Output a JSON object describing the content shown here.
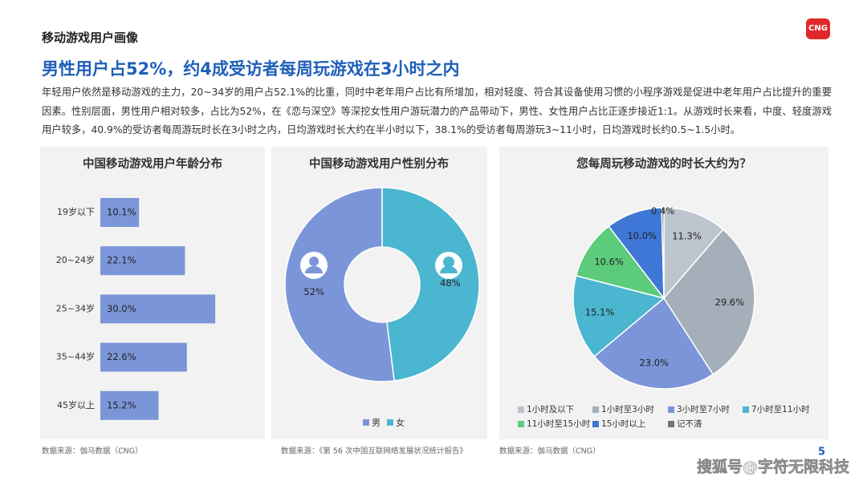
{
  "header": {
    "section": "移动游戏用户画像",
    "logo": "CNG",
    "title": "男性用户占52%，约4成受访者每周玩游戏在3小时之内",
    "paragraph": "年轻用户依然是移动游戏的主力，20~34岁的用户占52.1%的比重，同时中老年用户占比有所增加，相对轻度、符合其设备使用习惯的小程序游戏是促进中老年用户占比提升的重要因素。性别层面，男性用户相对较多，占比为52%，在《恋与深空》等深挖女性用户游玩潜力的产品带动下，男性、女性用户占比正逐步接近1:1。从游戏时长来看，中度、轻度游戏用户较多，40.9%的受访者每周游玩时长在3小时之内，日均游戏时长大约在半小时以下，38.1%的受访者每周游玩3~11小时，日均游戏时长约0.5~1.5小时。"
  },
  "chart_data": [
    {
      "type": "bar",
      "title": "中国移动游戏用户年龄分布",
      "source": "数据来源：伽马数据（CNG）",
      "categories": [
        "19岁以下",
        "20~24岁",
        "25~34岁",
        "35~44岁",
        "45岁以上"
      ],
      "values": [
        10.1,
        22.1,
        30.0,
        22.6,
        15.2
      ],
      "value_labels": [
        "10.1%",
        "22.1%",
        "30.0%",
        "22.6%",
        "15.2%"
      ],
      "color": "#7b96d8"
    },
    {
      "type": "donut",
      "title": "中国移动游戏用户性别分布",
      "source": "数据来源：《第 56 次中国互联网络发展状况统计报告》",
      "categories": [
        "男",
        "女"
      ],
      "values": [
        52,
        48
      ],
      "value_labels": [
        "52%",
        "48%"
      ],
      "colors": [
        "#7b96d8",
        "#4bb6cf"
      ]
    },
    {
      "type": "pie",
      "title": "您每周玩移动游戏的时长大约为？",
      "source": "数据来源：伽马数据（CNG）",
      "categories": [
        "1小时及以下",
        "1小时至3小时",
        "3小时至7小时",
        "7小时至11小时",
        "11小时至15小时",
        "15小时以上",
        "记不清"
      ],
      "values": [
        11.3,
        29.6,
        23.0,
        15.1,
        10.6,
        10.0,
        0.4
      ],
      "value_labels": [
        "11.3%",
        "29.6%",
        "23.0%",
        "15.1%",
        "10.6%",
        "10.0%",
        "0.4%"
      ],
      "colors": [
        "#bcc4cd",
        "#a4afba",
        "#7b96d8",
        "#4bb6cf",
        "#5ccb7c",
        "#3e77d6",
        "#6b7785"
      ]
    }
  ],
  "footer": {
    "page": "5",
    "watermark": "搜狐号@字符无限科技"
  }
}
